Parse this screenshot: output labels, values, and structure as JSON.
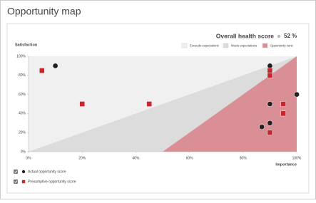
{
  "header": {
    "title": "Opportunity map"
  },
  "chart_data": {
    "type": "scatter",
    "score": {
      "label": "Overall health score",
      "value": 52,
      "value_label": "52 %",
      "color": "#d9353b"
    },
    "ylabel": "Satisfaction",
    "xlabel": "Importance",
    "zones": [
      {
        "name": "Exceeds expectations",
        "color": "#f0f0f0"
      },
      {
        "name": "Meets expectations",
        "color": "#dcdcdc"
      },
      {
        "name": "Opportunity zone",
        "color": "#d98f95"
      }
    ],
    "xlim": [
      0,
      100
    ],
    "ylim": [
      0,
      100
    ],
    "xticks": [
      {
        "value": 0,
        "label": "0%"
      },
      {
        "value": 20,
        "label": "20%"
      },
      {
        "value": 40,
        "label": "40%"
      },
      {
        "value": 60,
        "label": "60%"
      },
      {
        "value": 80,
        "label": "80%"
      },
      {
        "value": 100,
        "label": "100%"
      }
    ],
    "yticks": [
      {
        "value": 0,
        "label": "0%"
      },
      {
        "value": 20,
        "label": "20%"
      },
      {
        "value": 40,
        "label": "40%"
      },
      {
        "value": 60,
        "label": "60%"
      },
      {
        "value": 80,
        "label": "80%"
      },
      {
        "value": 100,
        "label": "100%"
      }
    ],
    "series": [
      {
        "name": "Actual opportunity score",
        "color": "#222222",
        "marker": "circle",
        "x": [
          10,
          90,
          90,
          100,
          87,
          90
        ],
        "y": [
          90,
          90,
          50,
          60,
          26,
          30
        ]
      },
      {
        "name": "Presumptive opportunity score",
        "color": "#c8262e",
        "marker": "square",
        "x": [
          5,
          20,
          45,
          90,
          90,
          95,
          95,
          90
        ],
        "y": [
          85,
          50,
          50,
          85,
          80,
          50,
          40,
          20
        ]
      }
    ]
  }
}
